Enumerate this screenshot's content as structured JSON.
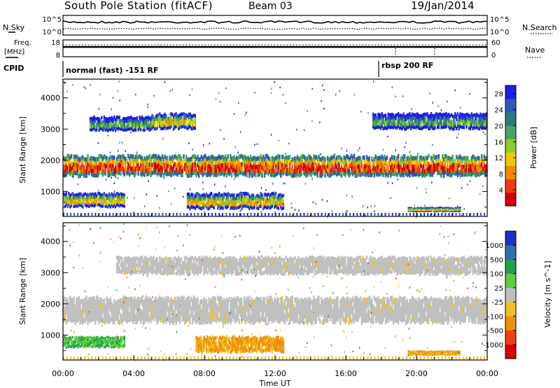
{
  "header": {
    "title": "South Pole Station (fitACF)",
    "beam": "Beam 03",
    "date": "19/Jan/2014"
  },
  "top_panels": {
    "nsky_label": "N.Sky",
    "nsky_ticks": [
      "10^5",
      "10^0"
    ],
    "nsearch_label": "N.Search",
    "nsearch_ticks": [
      "10^5",
      "10^0"
    ],
    "freq_label_1": "Freq.",
    "freq_label_2": "[MHz]",
    "freq_ticks": [
      "18",
      "8"
    ],
    "nave_label": "Nave",
    "nave_ticks": [
      "60",
      "0"
    ],
    "cpid_label": "CPID",
    "cpid_segments": [
      {
        "label": "normal (fast) -151 RF",
        "start_hour": 0
      },
      {
        "label": "rbsp 200 RF",
        "start_hour": 17.75
      }
    ]
  },
  "chart_data": [
    {
      "type": "heatmap",
      "title": "Power",
      "ylabel": "Slant Range [km]",
      "yticks": [
        "1000",
        "2000",
        "3000",
        "4000"
      ],
      "ylim": [
        200,
        4600
      ],
      "xlim": [
        0,
        24
      ],
      "colorbar_label": "Power [dB]",
      "colorbar_ticks": [
        "4",
        "8",
        "12",
        "16",
        "20",
        "24",
        "28"
      ],
      "colors": [
        "#1f1fe0",
        "#2e58b8",
        "#2c7c7c",
        "#48a460",
        "#8ccc30",
        "#f0c800",
        "#f08a00",
        "#ee3a10",
        "#d00000"
      ],
      "bands": [
        {
          "range_km": [
            1500,
            2150
          ],
          "start_hour": 0,
          "end_hour": 24,
          "level": "high"
        },
        {
          "range_km": [
            2950,
            3400
          ],
          "start_hour": 1.5,
          "end_hour": 5,
          "level": "low"
        },
        {
          "range_km": [
            3000,
            3500
          ],
          "start_hour": 5,
          "end_hour": 7.5,
          "level": "mid"
        },
        {
          "range_km": [
            3000,
            3500
          ],
          "start_hour": 17.5,
          "end_hour": 24,
          "level": "low"
        },
        {
          "range_km": [
            500,
            950
          ],
          "start_hour": 0,
          "end_hour": 3.5,
          "level": "mid"
        },
        {
          "range_km": [
            450,
            950
          ],
          "start_hour": 7,
          "end_hour": 12.5,
          "level": "mid"
        },
        {
          "range_km": [
            350,
            500
          ],
          "start_hour": 19.5,
          "end_hour": 22.5,
          "level": "mid"
        }
      ]
    },
    {
      "type": "heatmap",
      "title": "Velocity",
      "ylabel": "Slant Range [km]",
      "yticks": [
        "1000",
        "2000",
        "3000",
        "4000"
      ],
      "ylim": [
        200,
        4600
      ],
      "xlim": [
        0,
        24
      ],
      "colorbar_label": "Velocity [m s^-1]",
      "colorbar_ticks": [
        "1000",
        "500",
        "100",
        "25",
        "-25",
        "-100",
        "-500",
        "-1000"
      ],
      "colors": [
        "#2030c0",
        "#3070b0",
        "#20a050",
        "#60cc40",
        "#c0c0c0",
        "#f0c020",
        "#f09010",
        "#ee4010",
        "#e00000"
      ],
      "bands": [
        {
          "range_km": [
            1400,
            2200
          ],
          "start_hour": 0,
          "end_hour": 24,
          "velocity": "ground"
        },
        {
          "range_km": [
            2950,
            3500
          ],
          "start_hour": 3,
          "end_hour": 24,
          "velocity": "ground"
        },
        {
          "range_km": [
            600,
            950
          ],
          "start_hour": 0,
          "end_hour": 3.5,
          "velocity": "positive"
        },
        {
          "range_km": [
            450,
            950
          ],
          "start_hour": 7.5,
          "end_hour": 12.5,
          "velocity": "negative"
        },
        {
          "range_km": [
            350,
            500
          ],
          "start_hour": 19.5,
          "end_hour": 22.5,
          "velocity": "negative"
        }
      ]
    }
  ],
  "xaxis": {
    "label": "Time UT",
    "ticks": [
      "00:00",
      "04:00",
      "08:00",
      "12:00",
      "16:00",
      "20:00",
      "00:00"
    ]
  }
}
